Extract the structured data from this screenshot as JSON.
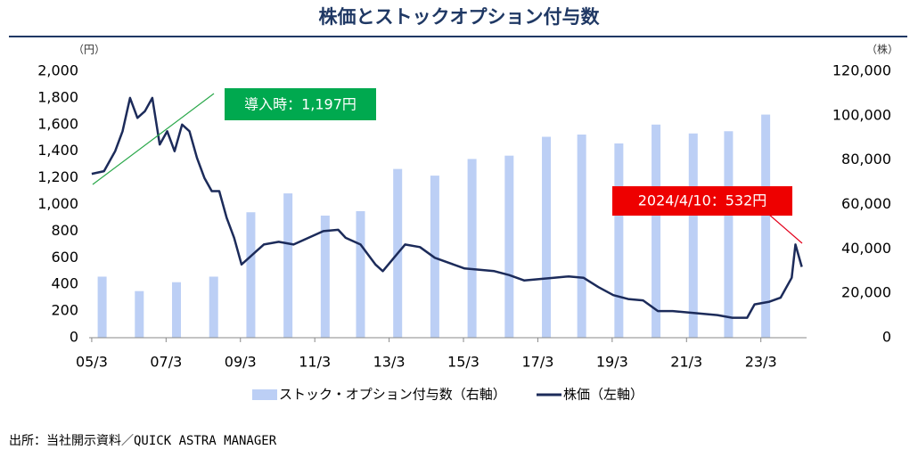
{
  "chart_data": {
    "type": "bar+line",
    "title": "株価とストックオプション付与数",
    "y_unit": "（円）",
    "y2_unit": "（株）",
    "source": "出所：当社開示資料／QUICK ASTRA MANAGER",
    "annotations": [
      "導入時：1,197円",
      "2024/4/10：532円"
    ],
    "xlim": [
      2005.1,
      2024.4
    ],
    "xticks": [
      {
        "value": 2005.17,
        "label": "05/3"
      },
      {
        "value": 2007.17,
        "label": "07/3"
      },
      {
        "value": 2009.17,
        "label": "09/3"
      },
      {
        "value": 2011.17,
        "label": "11/3"
      },
      {
        "value": 2013.17,
        "label": "13/3"
      },
      {
        "value": 2015.17,
        "label": "15/3"
      },
      {
        "value": 2017.17,
        "label": "17/3"
      },
      {
        "value": 2019.17,
        "label": "19/3"
      },
      {
        "value": 2021.17,
        "label": "21/3"
      },
      {
        "value": 2023.17,
        "label": "23/3"
      }
    ],
    "ylim": [
      0,
      2000
    ],
    "yticks": [
      0,
      200,
      400,
      600,
      800,
      {
        "value": 1000,
        "label": "1,000"
      },
      {
        "value": 1200,
        "label": "1,200"
      },
      {
        "value": 1400,
        "label": "1,400"
      },
      {
        "value": 1600,
        "label": "1,600"
      },
      {
        "value": 1800,
        "label": "1,800"
      },
      {
        "value": 2000,
        "label": "2,000"
      }
    ],
    "y2lim": [
      0,
      120000
    ],
    "y2ticks": [
      0,
      {
        "value": 20000,
        "label": "20,000"
      },
      {
        "value": 40000,
        "label": "40,000"
      },
      {
        "value": 60000,
        "label": "60,000"
      },
      {
        "value": 80000,
        "label": "80,000"
      },
      {
        "value": 100000,
        "label": "100,000"
      },
      {
        "value": 120000,
        "label": "120,000"
      }
    ],
    "grid": false,
    "series": [
      {
        "name": "ストック・オプション付与数（右軸）",
        "type": "bar",
        "axis": "y2",
        "color": "#bccff5",
        "x": [
          2005.45,
          2006.45,
          2007.45,
          2008.45,
          2009.45,
          2010.45,
          2011.45,
          2012.4,
          2013.4,
          2014.4,
          2015.4,
          2016.4,
          2017.4,
          2018.35,
          2019.35,
          2020.35,
          2021.35,
          2022.3,
          2023.3
        ],
        "values": [
          27500,
          21000,
          25000,
          27500,
          56500,
          65000,
          55000,
          57000,
          76000,
          73000,
          80500,
          82000,
          90500,
          91500,
          87500,
          96000,
          92000,
          93000,
          100500
        ]
      },
      {
        "name": "株価（左軸）",
        "type": "line",
        "axis": "y",
        "color": "#1c2b5a",
        "x": [
          2005.17,
          2005.5,
          2005.8,
          2006.0,
          2006.2,
          2006.4,
          2006.6,
          2006.8,
          2007.0,
          2007.2,
          2007.4,
          2007.6,
          2007.8,
          2008.0,
          2008.2,
          2008.4,
          2008.6,
          2008.8,
          2009.0,
          2009.2,
          2009.4,
          2009.6,
          2009.8,
          2010.2,
          2010.6,
          2011.0,
          2011.4,
          2011.8,
          2012.0,
          2012.4,
          2012.8,
          2013.0,
          2013.3,
          2013.6,
          2014.0,
          2014.4,
          2014.8,
          2015.2,
          2015.6,
          2016.0,
          2016.4,
          2016.8,
          2017.2,
          2017.6,
          2018.0,
          2018.4,
          2018.8,
          2019.2,
          2019.6,
          2020.0,
          2020.4,
          2020.8,
          2021.2,
          2021.6,
          2022.0,
          2022.4,
          2022.8,
          2023.0,
          2023.4,
          2023.7,
          2024.0,
          2024.1,
          2024.27
        ],
        "values": [
          1230,
          1250,
          1400,
          1550,
          1800,
          1650,
          1700,
          1800,
          1450,
          1550,
          1400,
          1600,
          1550,
          1350,
          1200,
          1100,
          1100,
          900,
          750,
          550,
          600,
          650,
          700,
          720,
          700,
          750,
          800,
          810,
          750,
          700,
          550,
          500,
          600,
          700,
          680,
          600,
          560,
          520,
          510,
          500,
          470,
          430,
          440,
          450,
          460,
          450,
          380,
          320,
          290,
          280,
          200,
          200,
          190,
          180,
          170,
          150,
          150,
          250,
          270,
          300,
          450,
          700,
          532
        ]
      }
    ]
  }
}
